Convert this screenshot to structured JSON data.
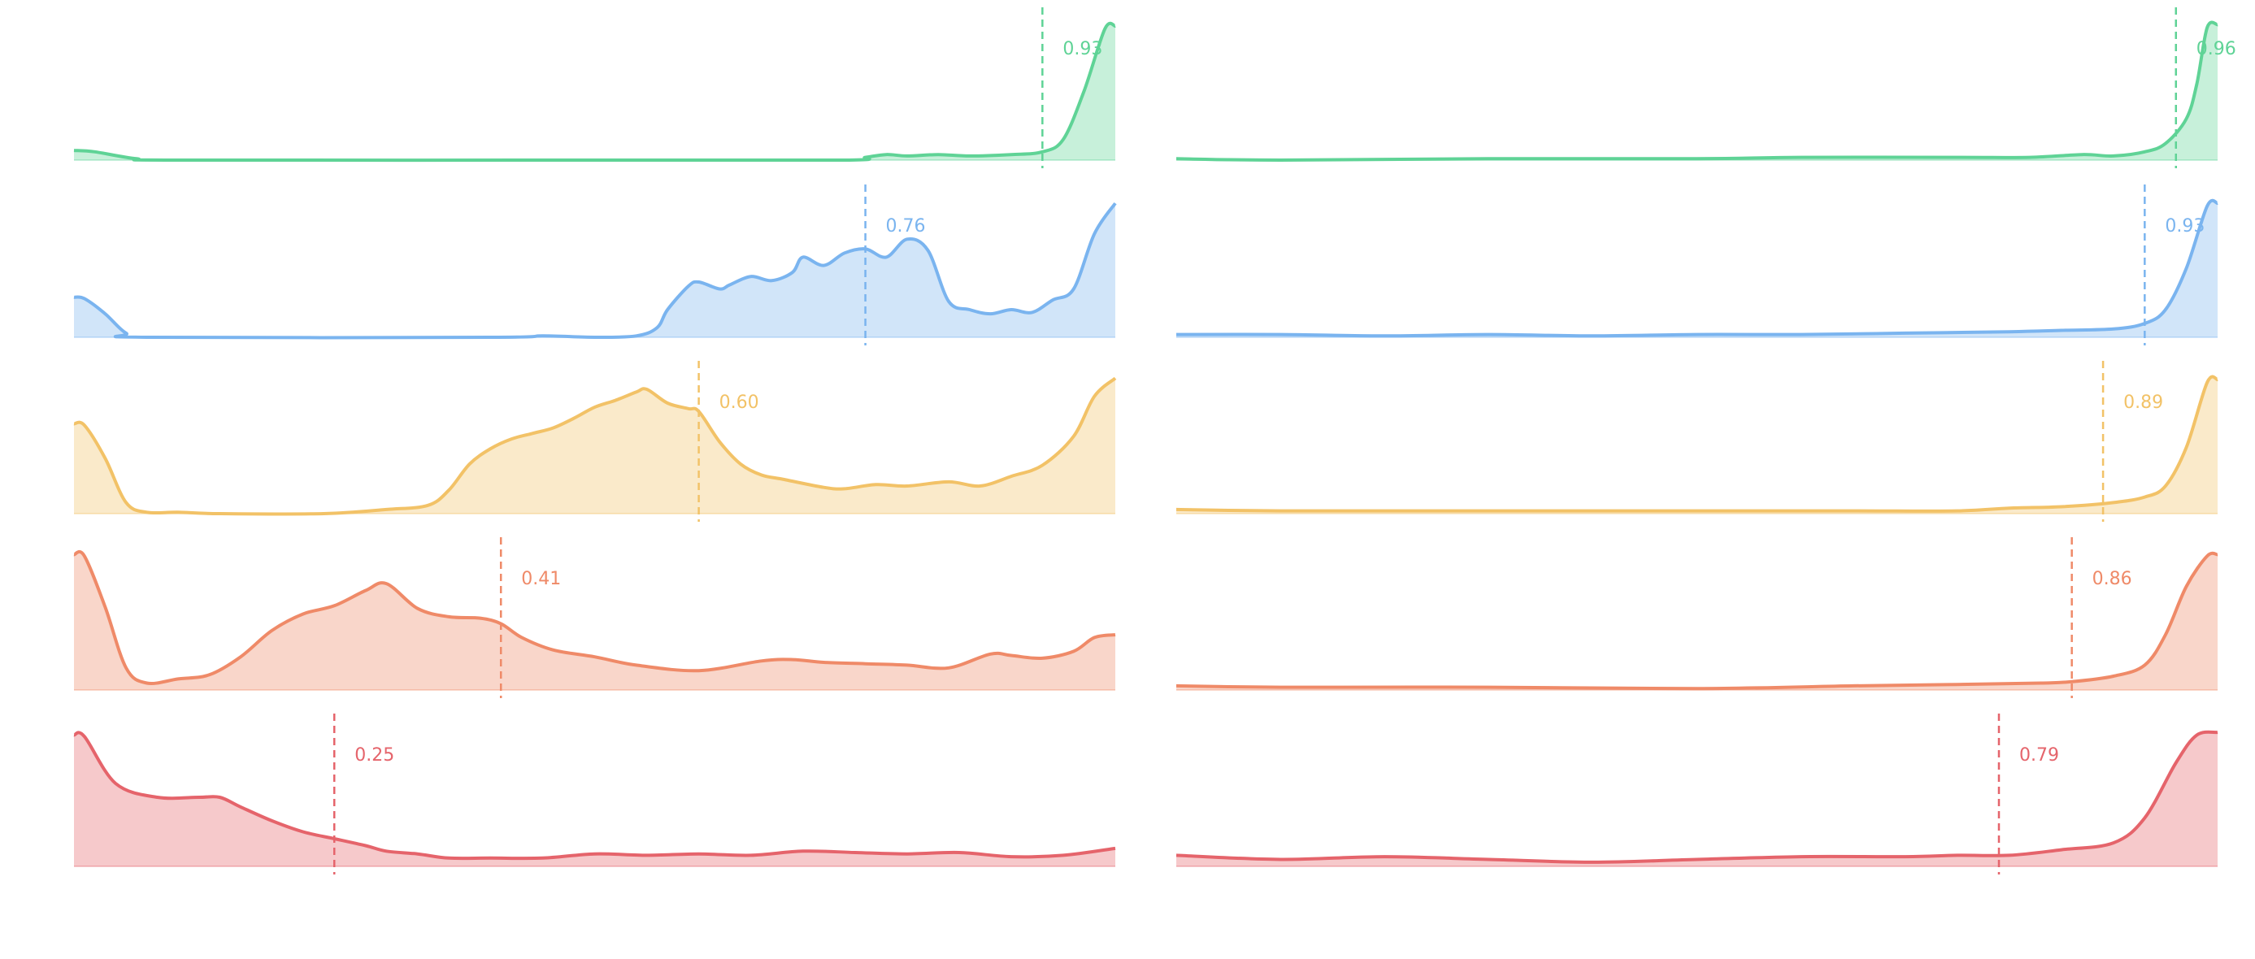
{
  "chart_data": [
    {
      "type": "area",
      "title": "",
      "xlabel": "",
      "ylabel": "",
      "xlim": [
        0,
        1
      ],
      "grid": false,
      "x_ticks": [
        "",
        "",
        "",
        "",
        ""
      ],
      "series": [
        {
          "color": "#5fd396",
          "mean_label": "0.93",
          "mean": 0.93,
          "points": [
            [
              0,
              0.07
            ],
            [
              0.02,
              0.06
            ],
            [
              0.06,
              0.01
            ],
            [
              0.1,
              0
            ],
            [
              0.5,
              0
            ],
            [
              0.74,
              0
            ],
            [
              0.76,
              0.02
            ],
            [
              0.78,
              0.04
            ],
            [
              0.8,
              0.03
            ],
            [
              0.83,
              0.04
            ],
            [
              0.86,
              0.03
            ],
            [
              0.9,
              0.04
            ],
            [
              0.93,
              0.06
            ],
            [
              0.95,
              0.15
            ],
            [
              0.97,
              0.5
            ],
            [
              0.99,
              0.95
            ],
            [
              1.0,
              0.97
            ]
          ]
        },
        {
          "color": "#7ab4ef",
          "mean_label": "0.76",
          "mean": 0.76,
          "points": [
            [
              0,
              0.29
            ],
            [
              0.01,
              0.28
            ],
            [
              0.03,
              0.17
            ],
            [
              0.05,
              0.03
            ],
            [
              0.07,
              0
            ],
            [
              0.4,
              0
            ],
            [
              0.45,
              0.01
            ],
            [
              0.5,
              0
            ],
            [
              0.54,
              0.01
            ],
            [
              0.56,
              0.07
            ],
            [
              0.57,
              0.2
            ],
            [
              0.59,
              0.37
            ],
            [
              0.6,
              0.4
            ],
            [
              0.62,
              0.35
            ],
            [
              0.63,
              0.38
            ],
            [
              0.65,
              0.44
            ],
            [
              0.67,
              0.41
            ],
            [
              0.69,
              0.47
            ],
            [
              0.7,
              0.58
            ],
            [
              0.72,
              0.52
            ],
            [
              0.74,
              0.61
            ],
            [
              0.76,
              0.64
            ],
            [
              0.78,
              0.58
            ],
            [
              0.8,
              0.71
            ],
            [
              0.82,
              0.63
            ],
            [
              0.84,
              0.26
            ],
            [
              0.86,
              0.2
            ],
            [
              0.88,
              0.17
            ],
            [
              0.9,
              0.2
            ],
            [
              0.92,
              0.18
            ],
            [
              0.94,
              0.27
            ],
            [
              0.96,
              0.35
            ],
            [
              0.98,
              0.75
            ],
            [
              1.0,
              0.97
            ]
          ]
        },
        {
          "color": "#f2c267",
          "mean_label": "0.60",
          "mean": 0.6,
          "points": [
            [
              0,
              0.65
            ],
            [
              0.01,
              0.64
            ],
            [
              0.03,
              0.4
            ],
            [
              0.05,
              0.08
            ],
            [
              0.07,
              0.01
            ],
            [
              0.1,
              0.01
            ],
            [
              0.14,
              0
            ],
            [
              0.24,
              0
            ],
            [
              0.3,
              0.03
            ],
            [
              0.34,
              0.06
            ],
            [
              0.36,
              0.17
            ],
            [
              0.38,
              0.36
            ],
            [
              0.4,
              0.47
            ],
            [
              0.42,
              0.54
            ],
            [
              0.44,
              0.58
            ],
            [
              0.46,
              0.62
            ],
            [
              0.48,
              0.69
            ],
            [
              0.5,
              0.77
            ],
            [
              0.52,
              0.82
            ],
            [
              0.54,
              0.88
            ],
            [
              0.55,
              0.9
            ],
            [
              0.57,
              0.8
            ],
            [
              0.59,
              0.76
            ],
            [
              0.6,
              0.74
            ],
            [
              0.62,
              0.52
            ],
            [
              0.64,
              0.36
            ],
            [
              0.66,
              0.28
            ],
            [
              0.68,
              0.25
            ],
            [
              0.72,
              0.19
            ],
            [
              0.74,
              0.18
            ],
            [
              0.77,
              0.21
            ],
            [
              0.8,
              0.2
            ],
            [
              0.84,
              0.23
            ],
            [
              0.87,
              0.2
            ],
            [
              0.9,
              0.27
            ],
            [
              0.93,
              0.35
            ],
            [
              0.96,
              0.56
            ],
            [
              0.98,
              0.85
            ],
            [
              1.0,
              0.98
            ]
          ]
        },
        {
          "color": "#ef8a68",
          "mean_label": "0.41",
          "mean": 0.41,
          "points": [
            [
              0,
              0.98
            ],
            [
              0.01,
              0.97
            ],
            [
              0.03,
              0.6
            ],
            [
              0.05,
              0.16
            ],
            [
              0.07,
              0.05
            ],
            [
              0.1,
              0.08
            ],
            [
              0.13,
              0.11
            ],
            [
              0.16,
              0.24
            ],
            [
              0.19,
              0.43
            ],
            [
              0.22,
              0.55
            ],
            [
              0.25,
              0.61
            ],
            [
              0.28,
              0.72
            ],
            [
              0.3,
              0.77
            ],
            [
              0.33,
              0.59
            ],
            [
              0.36,
              0.53
            ],
            [
              0.39,
              0.52
            ],
            [
              0.41,
              0.48
            ],
            [
              0.43,
              0.38
            ],
            [
              0.46,
              0.29
            ],
            [
              0.5,
              0.24
            ],
            [
              0.54,
              0.18
            ],
            [
              0.6,
              0.14
            ],
            [
              0.66,
              0.21
            ],
            [
              0.69,
              0.22
            ],
            [
              0.72,
              0.2
            ],
            [
              0.76,
              0.19
            ],
            [
              0.8,
              0.18
            ],
            [
              0.84,
              0.16
            ],
            [
              0.88,
              0.26
            ],
            [
              0.9,
              0.25
            ],
            [
              0.93,
              0.23
            ],
            [
              0.96,
              0.28
            ],
            [
              0.98,
              0.38
            ],
            [
              1.0,
              0.4
            ]
          ]
        },
        {
          "color": "#e5646b",
          "mean_label": "0.25",
          "mean": 0.25,
          "points": [
            [
              0,
              0.95
            ],
            [
              0.01,
              0.94
            ],
            [
              0.04,
              0.6
            ],
            [
              0.08,
              0.5
            ],
            [
              0.12,
              0.5
            ],
            [
              0.14,
              0.5
            ],
            [
              0.16,
              0.43
            ],
            [
              0.19,
              0.33
            ],
            [
              0.22,
              0.25
            ],
            [
              0.25,
              0.2
            ],
            [
              0.28,
              0.15
            ],
            [
              0.3,
              0.11
            ],
            [
              0.33,
              0.09
            ],
            [
              0.36,
              0.06
            ],
            [
              0.4,
              0.06
            ],
            [
              0.45,
              0.06
            ],
            [
              0.5,
              0.09
            ],
            [
              0.55,
              0.08
            ],
            [
              0.6,
              0.09
            ],
            [
              0.65,
              0.08
            ],
            [
              0.7,
              0.11
            ],
            [
              0.75,
              0.1
            ],
            [
              0.8,
              0.09
            ],
            [
              0.85,
              0.1
            ],
            [
              0.9,
              0.07
            ],
            [
              0.95,
              0.08
            ],
            [
              1.0,
              0.13
            ]
          ]
        }
      ]
    },
    {
      "type": "area",
      "title": "",
      "xlabel": "",
      "ylabel": "",
      "xlim": [
        0,
        1
      ],
      "grid": false,
      "x_ticks": [
        "",
        "",
        "",
        "",
        ""
      ],
      "series": [
        {
          "color": "#5fd396",
          "mean_label": "0.96",
          "mean": 0.96,
          "points": [
            [
              0,
              0.01
            ],
            [
              0.1,
              0
            ],
            [
              0.3,
              0.01
            ],
            [
              0.5,
              0.01
            ],
            [
              0.6,
              0.02
            ],
            [
              0.75,
              0.02
            ],
            [
              0.82,
              0.02
            ],
            [
              0.87,
              0.04
            ],
            [
              0.9,
              0.03
            ],
            [
              0.93,
              0.06
            ],
            [
              0.95,
              0.12
            ],
            [
              0.97,
              0.3
            ],
            [
              0.98,
              0.55
            ],
            [
              0.99,
              0.96
            ],
            [
              1.0,
              0.98
            ]
          ]
        },
        {
          "color": "#7ab4ef",
          "mean_label": "0.93",
          "mean": 0.93,
          "points": [
            [
              0,
              0.02
            ],
            [
              0.1,
              0.02
            ],
            [
              0.2,
              0.01
            ],
            [
              0.3,
              0.02
            ],
            [
              0.4,
              0.01
            ],
            [
              0.5,
              0.02
            ],
            [
              0.6,
              0.02
            ],
            [
              0.7,
              0.03
            ],
            [
              0.8,
              0.04
            ],
            [
              0.85,
              0.05
            ],
            [
              0.9,
              0.06
            ],
            [
              0.93,
              0.1
            ],
            [
              0.95,
              0.2
            ],
            [
              0.97,
              0.5
            ],
            [
              0.99,
              0.95
            ],
            [
              1.0,
              0.97
            ]
          ]
        },
        {
          "color": "#f2c267",
          "mean_label": "0.89",
          "mean": 0.89,
          "points": [
            [
              0,
              0.03
            ],
            [
              0.1,
              0.02
            ],
            [
              0.3,
              0.02
            ],
            [
              0.5,
              0.02
            ],
            [
              0.65,
              0.02
            ],
            [
              0.75,
              0.02
            ],
            [
              0.8,
              0.04
            ],
            [
              0.85,
              0.05
            ],
            [
              0.9,
              0.08
            ],
            [
              0.93,
              0.12
            ],
            [
              0.95,
              0.2
            ],
            [
              0.97,
              0.48
            ],
            [
              0.99,
              0.95
            ],
            [
              1.0,
              0.97
            ]
          ]
        },
        {
          "color": "#ef8a68",
          "mean_label": "0.86",
          "mean": 0.86,
          "points": [
            [
              0,
              0.03
            ],
            [
              0.1,
              0.02
            ],
            [
              0.3,
              0.02
            ],
            [
              0.5,
              0.01
            ],
            [
              0.65,
              0.03
            ],
            [
              0.75,
              0.04
            ],
            [
              0.83,
              0.05
            ],
            [
              0.86,
              0.06
            ],
            [
              0.9,
              0.1
            ],
            [
              0.93,
              0.18
            ],
            [
              0.95,
              0.4
            ],
            [
              0.97,
              0.75
            ],
            [
              0.99,
              0.97
            ],
            [
              1.0,
              0.98
            ]
          ]
        },
        {
          "color": "#e5646b",
          "mean_label": "0.79",
          "mean": 0.79,
          "points": [
            [
              0,
              0.08
            ],
            [
              0.1,
              0.05
            ],
            [
              0.2,
              0.07
            ],
            [
              0.3,
              0.05
            ],
            [
              0.4,
              0.03
            ],
            [
              0.5,
              0.05
            ],
            [
              0.6,
              0.07
            ],
            [
              0.7,
              0.07
            ],
            [
              0.75,
              0.08
            ],
            [
              0.8,
              0.08
            ],
            [
              0.85,
              0.12
            ],
            [
              0.9,
              0.17
            ],
            [
              0.93,
              0.35
            ],
            [
              0.96,
              0.75
            ],
            [
              0.98,
              0.95
            ],
            [
              1.0,
              0.97
            ]
          ]
        }
      ]
    }
  ]
}
